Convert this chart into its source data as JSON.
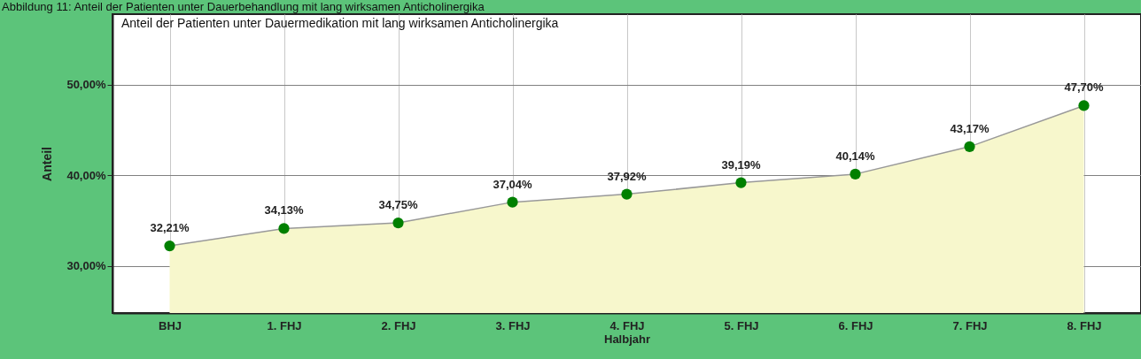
{
  "chart_data": {
    "type": "area",
    "title": "Anteil der Patienten unter Dauermedikation mit lang wirksamen Anticholinergika",
    "annotations": [
      "Abbildung 11: Anteil der Patienten unter Dauerbehandlung mit lang wirksamen Anticholinergika"
    ],
    "xlabel": "Halbjahr",
    "ylabel": "Anteil",
    "categories": [
      "BHJ",
      "1. FHJ",
      "2. FHJ",
      "3. FHJ",
      "4. FHJ",
      "5. FHJ",
      "6. FHJ",
      "7. FHJ",
      "8. FHJ"
    ],
    "series": [
      {
        "color": "#f7f7cc",
        "values": [
          32.21,
          34.13,
          34.75,
          37.04,
          37.92,
          39.19,
          40.14,
          43.17,
          47.7
        ],
        "value_labels": [
          "32,21%",
          "34,13%",
          "34,75%",
          "37,04%",
          "37,92%",
          "39,19%",
          "40,14%",
          "43,17%",
          "47,70%"
        ]
      }
    ],
    "ylim": [
      24.8,
      57.8
    ],
    "yticks": [
      {
        "value": 30,
        "label": "30,00%"
      },
      {
        "value": 40,
        "label": "40,00%"
      },
      {
        "value": 50,
        "label": "50,00%"
      }
    ],
    "grid": true,
    "marker": "circle",
    "line_style": "solid"
  }
}
